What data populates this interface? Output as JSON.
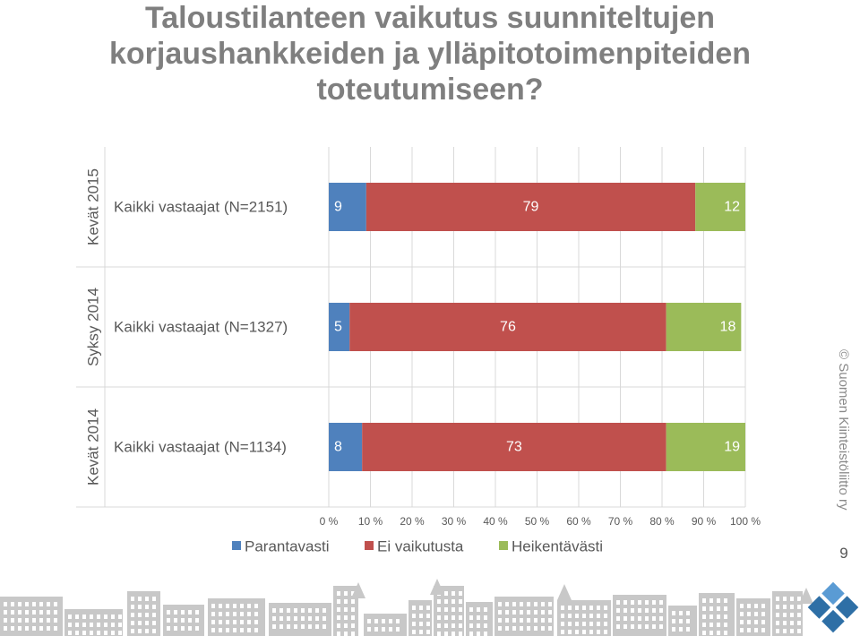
{
  "slide": {
    "title": "Taloustilanteen vaikutus suunniteltujen korjaushankkeiden ja ylläpitotoimenpiteiden toteutumiseen?",
    "copyright": "© Suomen Kiinteistöliitto ry",
    "page_number": "9"
  },
  "colors": {
    "Parantavasti": "#4f81bd",
    "Ei vaikutusta": "#c0504d",
    "Heikentävästi": "#9bbb59",
    "grid": "#d9d9d9",
    "text": "#595959",
    "footer": "#c8c8c8",
    "logo": "#2e6fa6"
  },
  "chart_data": {
    "type": "bar",
    "orientation": "horizontal",
    "stacked": true,
    "groups": [
      "Kevät 2015",
      "Syksy 2014",
      "Kevät 2014"
    ],
    "categories": [
      "Kaikki vastaajat (N=2151)",
      "Kaikki vastaajat (N=1327)",
      "Kaikki vastaajat (N=1134)"
    ],
    "series": [
      {
        "name": "Parantavasti",
        "values": [
          9,
          5,
          8
        ]
      },
      {
        "name": "Ei vaikutusta",
        "values": [
          79,
          76,
          73
        ]
      },
      {
        "name": "Heikentävästi",
        "values": [
          12,
          18,
          19
        ]
      }
    ],
    "xlim": [
      0,
      100
    ],
    "xticks": [
      "0 %",
      "10 %",
      "20 %",
      "30 %",
      "40 %",
      "50 %",
      "60 %",
      "70 %",
      "80 %",
      "90 %",
      "100 %"
    ],
    "grid": true,
    "legend": "bottom"
  }
}
